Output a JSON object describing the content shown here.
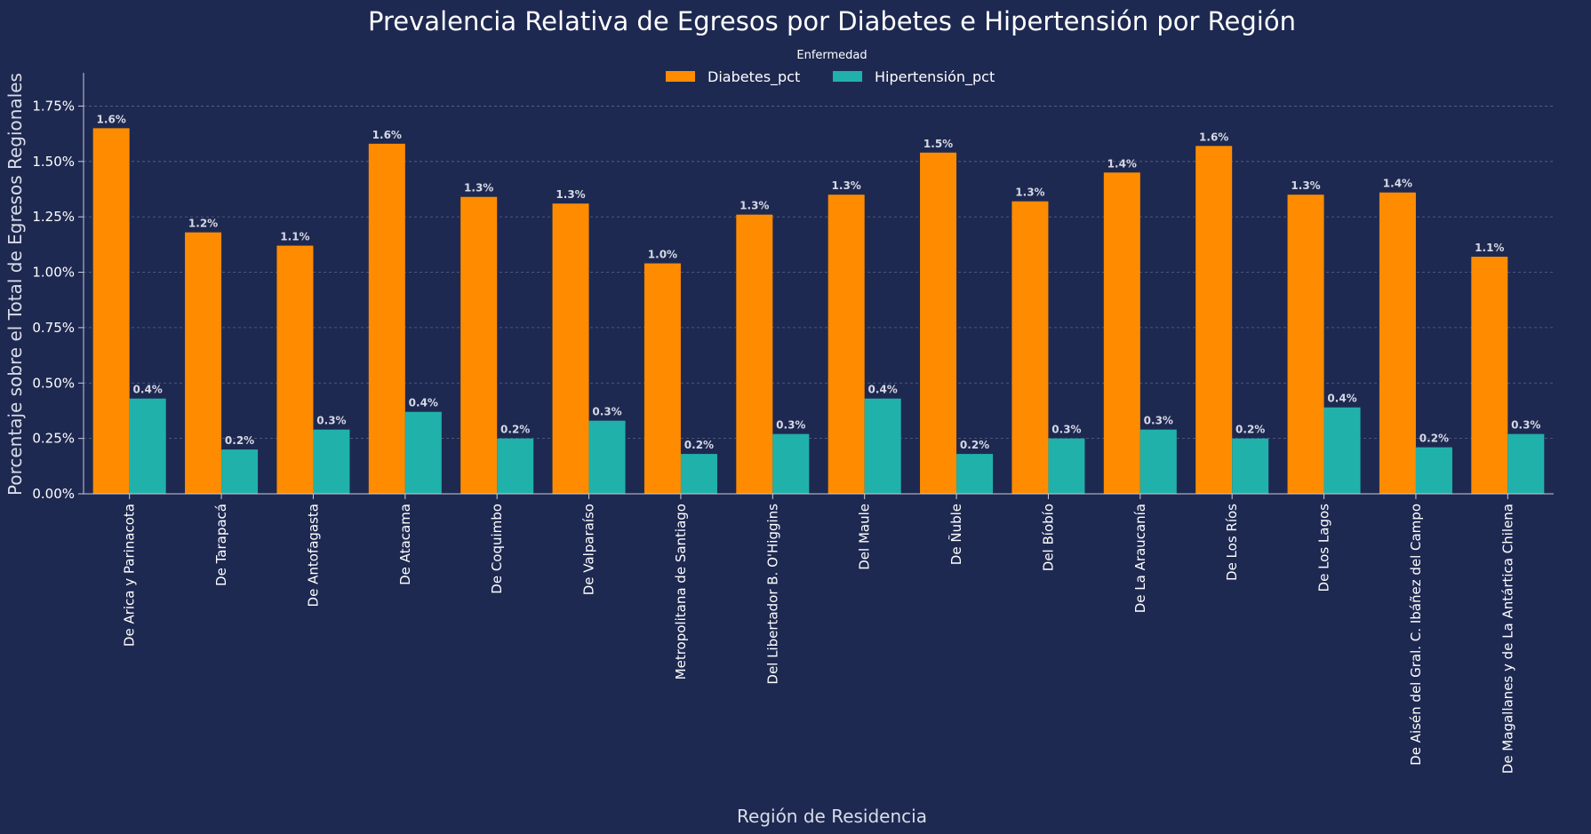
{
  "chart_data": {
    "type": "bar",
    "title": "Prevalencia Relativa de Egresos por Diabetes e Hipertensión por Región",
    "xlabel": "Región de Residencia",
    "ylabel": "Porcentaje sobre el Total de Egresos Regionales",
    "ylim": [
      0,
      1.9
    ],
    "yticks": [
      0,
      0.25,
      0.5,
      0.75,
      1.0,
      1.25,
      1.5,
      1.75
    ],
    "ytick_labels": [
      "0.00%",
      "0.25%",
      "0.50%",
      "0.75%",
      "1.00%",
      "1.25%",
      "1.50%",
      "1.75%"
    ],
    "grid": "horizontal dashed",
    "legend": {
      "title": "Enfermedad",
      "placement": "top-center",
      "entries": [
        "Diabetes_pct",
        "Hipertensión_pct"
      ]
    },
    "categories": [
      "De Arica y Parinacota",
      "De Tarapacá",
      "De Antofagasta",
      "De Atacama",
      "De Coquimbo",
      "De Valparaíso",
      "Metropolitana de Santiago",
      "Del Libertador B. O'Higgins",
      "Del Maule",
      "De Ñuble",
      "Del Bíobío",
      "De La Araucanía",
      "De Los Ríos",
      "De Los Lagos",
      "De Aisén del Gral. C. Ibáñez del Campo",
      "De Magallanes y de La Antártica Chilena"
    ],
    "series": [
      {
        "name": "Diabetes_pct",
        "color": "#ff8c00",
        "values": [
          1.65,
          1.18,
          1.12,
          1.58,
          1.34,
          1.31,
          1.04,
          1.26,
          1.35,
          1.54,
          1.32,
          1.45,
          1.57,
          1.35,
          1.36,
          1.07
        ],
        "labels": [
          "1.6%",
          "1.2%",
          "1.1%",
          "1.6%",
          "1.3%",
          "1.3%",
          "1.0%",
          "1.3%",
          "1.3%",
          "1.5%",
          "1.3%",
          "1.4%",
          "1.6%",
          "1.3%",
          "1.4%",
          "1.1%"
        ]
      },
      {
        "name": "Hipertensión_pct",
        "color": "#20b2aa",
        "values": [
          0.43,
          0.2,
          0.29,
          0.37,
          0.25,
          0.33,
          0.18,
          0.27,
          0.43,
          0.18,
          0.25,
          0.29,
          0.25,
          0.39,
          0.21,
          0.27
        ],
        "labels": [
          "0.4%",
          "0.2%",
          "0.3%",
          "0.4%",
          "0.2%",
          "0.3%",
          "0.2%",
          "0.3%",
          "0.4%",
          "0.2%",
          "0.3%",
          "0.3%",
          "0.2%",
          "0.4%",
          "0.2%",
          "0.3%"
        ]
      }
    ]
  }
}
